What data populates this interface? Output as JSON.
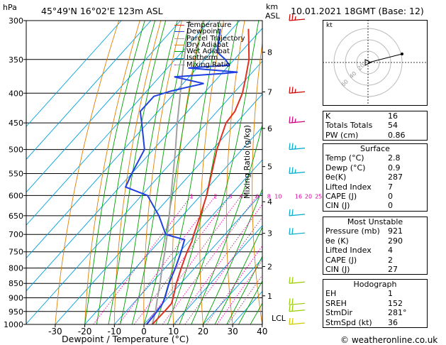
{
  "header": {
    "location": "45°49'N  16°02'E  123m  ASL",
    "datetime": "10.01.2021  18GMT  (Base: 12)",
    "left_unit": "hPa",
    "right_unit_km": "km",
    "right_unit_asl": "ASL"
  },
  "chart_data": {
    "type": "line",
    "xlabel": "Dewpoint / Temperature (°C)",
    "ylabel_right": "Mixing Ratio (g/kg)",
    "x_ticks": [
      "-30",
      "-20",
      "-10",
      "0",
      "10",
      "20",
      "30",
      "40"
    ],
    "pressure_levels": [
      "300",
      "350",
      "400",
      "450",
      "500",
      "550",
      "600",
      "650",
      "700",
      "750",
      "800",
      "850",
      "900",
      "950",
      "1000"
    ],
    "km_ticks": [
      {
        "label": "8",
        "p": 340
      },
      {
        "label": "7",
        "p": 398
      },
      {
        "label": "6",
        "p": 460
      },
      {
        "label": "5",
        "p": 535
      },
      {
        "label": "4",
        "p": 615
      },
      {
        "label": "3",
        "p": 697
      },
      {
        "label": "2",
        "p": 795
      },
      {
        "label": "1",
        "p": 893
      }
    ],
    "lcl_label": "LCL",
    "mixing_ratio_labels": [
      "1",
      "2",
      "3",
      "4",
      "6",
      "8",
      "10",
      "16",
      "20",
      "25"
    ],
    "legend": [
      "Temperature",
      "Dewpoint",
      "Parcel Trajectory",
      "Dry Adiabat",
      "Wet Adiabat",
      "Isotherm",
      "Mixing Ratio"
    ],
    "temperature": [
      {
        "p": 1000,
        "t": 2.8
      },
      {
        "p": 950,
        "t": 3.0
      },
      {
        "p": 921,
        "t": 3.0
      },
      {
        "p": 900,
        "t": 1.8
      },
      {
        "p": 850,
        "t": -1.5
      },
      {
        "p": 800,
        "t": -4.5
      },
      {
        "p": 750,
        "t": -7.5
      },
      {
        "p": 720,
        "t": -9.0
      },
      {
        "p": 700,
        "t": -10.5
      },
      {
        "p": 650,
        "t": -14.0
      },
      {
        "p": 600,
        "t": -18.0
      },
      {
        "p": 550,
        "t": -23.0
      },
      {
        "p": 500,
        "t": -28.5
      },
      {
        "p": 450,
        "t": -33.5
      },
      {
        "p": 430,
        "t": -34.0
      },
      {
        "p": 400,
        "t": -37.0
      },
      {
        "p": 380,
        "t": -40.0
      },
      {
        "p": 350,
        "t": -45.0
      },
      {
        "p": 320,
        "t": -52.0
      },
      {
        "p": 310,
        "t": -54.5
      }
    ],
    "dewpoint": [
      {
        "p": 1000,
        "t": 0.9
      },
      {
        "p": 950,
        "t": 0.5
      },
      {
        "p": 921,
        "t": 0.0
      },
      {
        "p": 900,
        "t": -1.0
      },
      {
        "p": 850,
        "t": -4.0
      },
      {
        "p": 800,
        "t": -6.5
      },
      {
        "p": 750,
        "t": -9.5
      },
      {
        "p": 715,
        "t": -12.0
      },
      {
        "p": 700,
        "t": -20.0
      },
      {
        "p": 650,
        "t": -28.0
      },
      {
        "p": 600,
        "t": -38.0
      },
      {
        "p": 580,
        "t": -48.0
      },
      {
        "p": 550,
        "t": -50.0
      },
      {
        "p": 500,
        "t": -53.0
      },
      {
        "p": 450,
        "t": -62.0
      },
      {
        "p": 430,
        "t": -66.0
      },
      {
        "p": 405,
        "t": -66.0
      },
      {
        "p": 397,
        "t": -62.0
      },
      {
        "p": 390,
        "t": -57.0
      },
      {
        "p": 385,
        "t": -53.0
      },
      {
        "p": 375,
        "t": -65.0
      },
      {
        "p": 370,
        "t": -50.0
      },
      {
        "p": 368,
        "t": -45.0
      },
      {
        "p": 362,
        "t": -63.0
      },
      {
        "p": 358,
        "t": -50.0
      },
      {
        "p": 350,
        "t": -53.0
      },
      {
        "p": 340,
        "t": -58.0
      },
      {
        "p": 320,
        "t": -62.0
      },
      {
        "p": 310,
        "t": -64.0
      }
    ],
    "parcel": [
      {
        "p": 1000,
        "t": 2.8
      },
      {
        "p": 950,
        "t": 0.0
      },
      {
        "p": 900,
        "t": -3.5
      },
      {
        "p": 850,
        "t": -7.0
      },
      {
        "p": 800,
        "t": -11.0
      },
      {
        "p": 750,
        "t": -15.0
      },
      {
        "p": 700,
        "t": -19.5
      },
      {
        "p": 650,
        "t": -24.5
      },
      {
        "p": 600,
        "t": -30.0
      },
      {
        "p": 550,
        "t": -36.0
      },
      {
        "p": 500,
        "t": -42.5
      },
      {
        "p": 450,
        "t": -50.0
      },
      {
        "p": 400,
        "t": -58.0
      },
      {
        "p": 350,
        "t": -67.0
      },
      {
        "p": 300,
        "t": -77.0
      }
    ],
    "wind_barbs": [
      {
        "p": 300,
        "color": "#cc0000"
      },
      {
        "p": 400,
        "color": "#cc0000"
      },
      {
        "p": 450,
        "color": "#cc0077"
      },
      {
        "p": 500,
        "color": "#00aacc"
      },
      {
        "p": 550,
        "color": "#00aacc"
      },
      {
        "p": 650,
        "color": "#00aacc"
      },
      {
        "p": 700,
        "color": "#00aacc"
      },
      {
        "p": 850,
        "color": "#99cc00"
      },
      {
        "p": 925,
        "color": "#99cc00"
      },
      {
        "p": 950,
        "color": "#99cc00"
      },
      {
        "p": 1000,
        "color": "#cccc00"
      }
    ],
    "colors": {
      "temperature": "#e03020",
      "dewpoint": "#2040e0",
      "parcel": "#a0a0a0",
      "dry_adiabat": "#e08000",
      "wet_adiabat": "#00a000",
      "isotherm": "#00a0e0",
      "mixing_ratio": "#e000a0"
    }
  },
  "hodograph": {
    "label": "kt",
    "ring_labels": [
      "20",
      "40",
      "60"
    ]
  },
  "indices": {
    "rows": [
      {
        "label": "K",
        "value": "16"
      },
      {
        "label": "Totals Totals",
        "value": "54"
      },
      {
        "label": "PW (cm)",
        "value": "0.86"
      }
    ]
  },
  "surface": {
    "title": "Surface",
    "rows": [
      {
        "label": "Temp (°C)",
        "value": "2.8"
      },
      {
        "label": "Dewp (°C)",
        "value": "0.9"
      },
      {
        "label": "θe(K)",
        "value": "287"
      },
      {
        "label": "Lifted Index",
        "value": "7"
      },
      {
        "label": "CAPE (J)",
        "value": "0"
      },
      {
        "label": "CIN (J)",
        "value": "0"
      }
    ]
  },
  "most_unstable": {
    "title": "Most Unstable",
    "rows": [
      {
        "label": "Pressure (mb)",
        "value": "921"
      },
      {
        "label": "θe (K)",
        "value": "290"
      },
      {
        "label": "Lifted Index",
        "value": "4"
      },
      {
        "label": "CAPE (J)",
        "value": "2"
      },
      {
        "label": "CIN (J)",
        "value": "27"
      }
    ]
  },
  "hodograph_table": {
    "title": "Hodograph",
    "rows": [
      {
        "label": "EH",
        "value": "1"
      },
      {
        "label": "SREH",
        "value": "152"
      },
      {
        "label": "StmDir",
        "value": "281°"
      },
      {
        "label": "StmSpd (kt)",
        "value": "36"
      }
    ]
  },
  "footer": {
    "credit": "© weatheronline.co.uk"
  }
}
